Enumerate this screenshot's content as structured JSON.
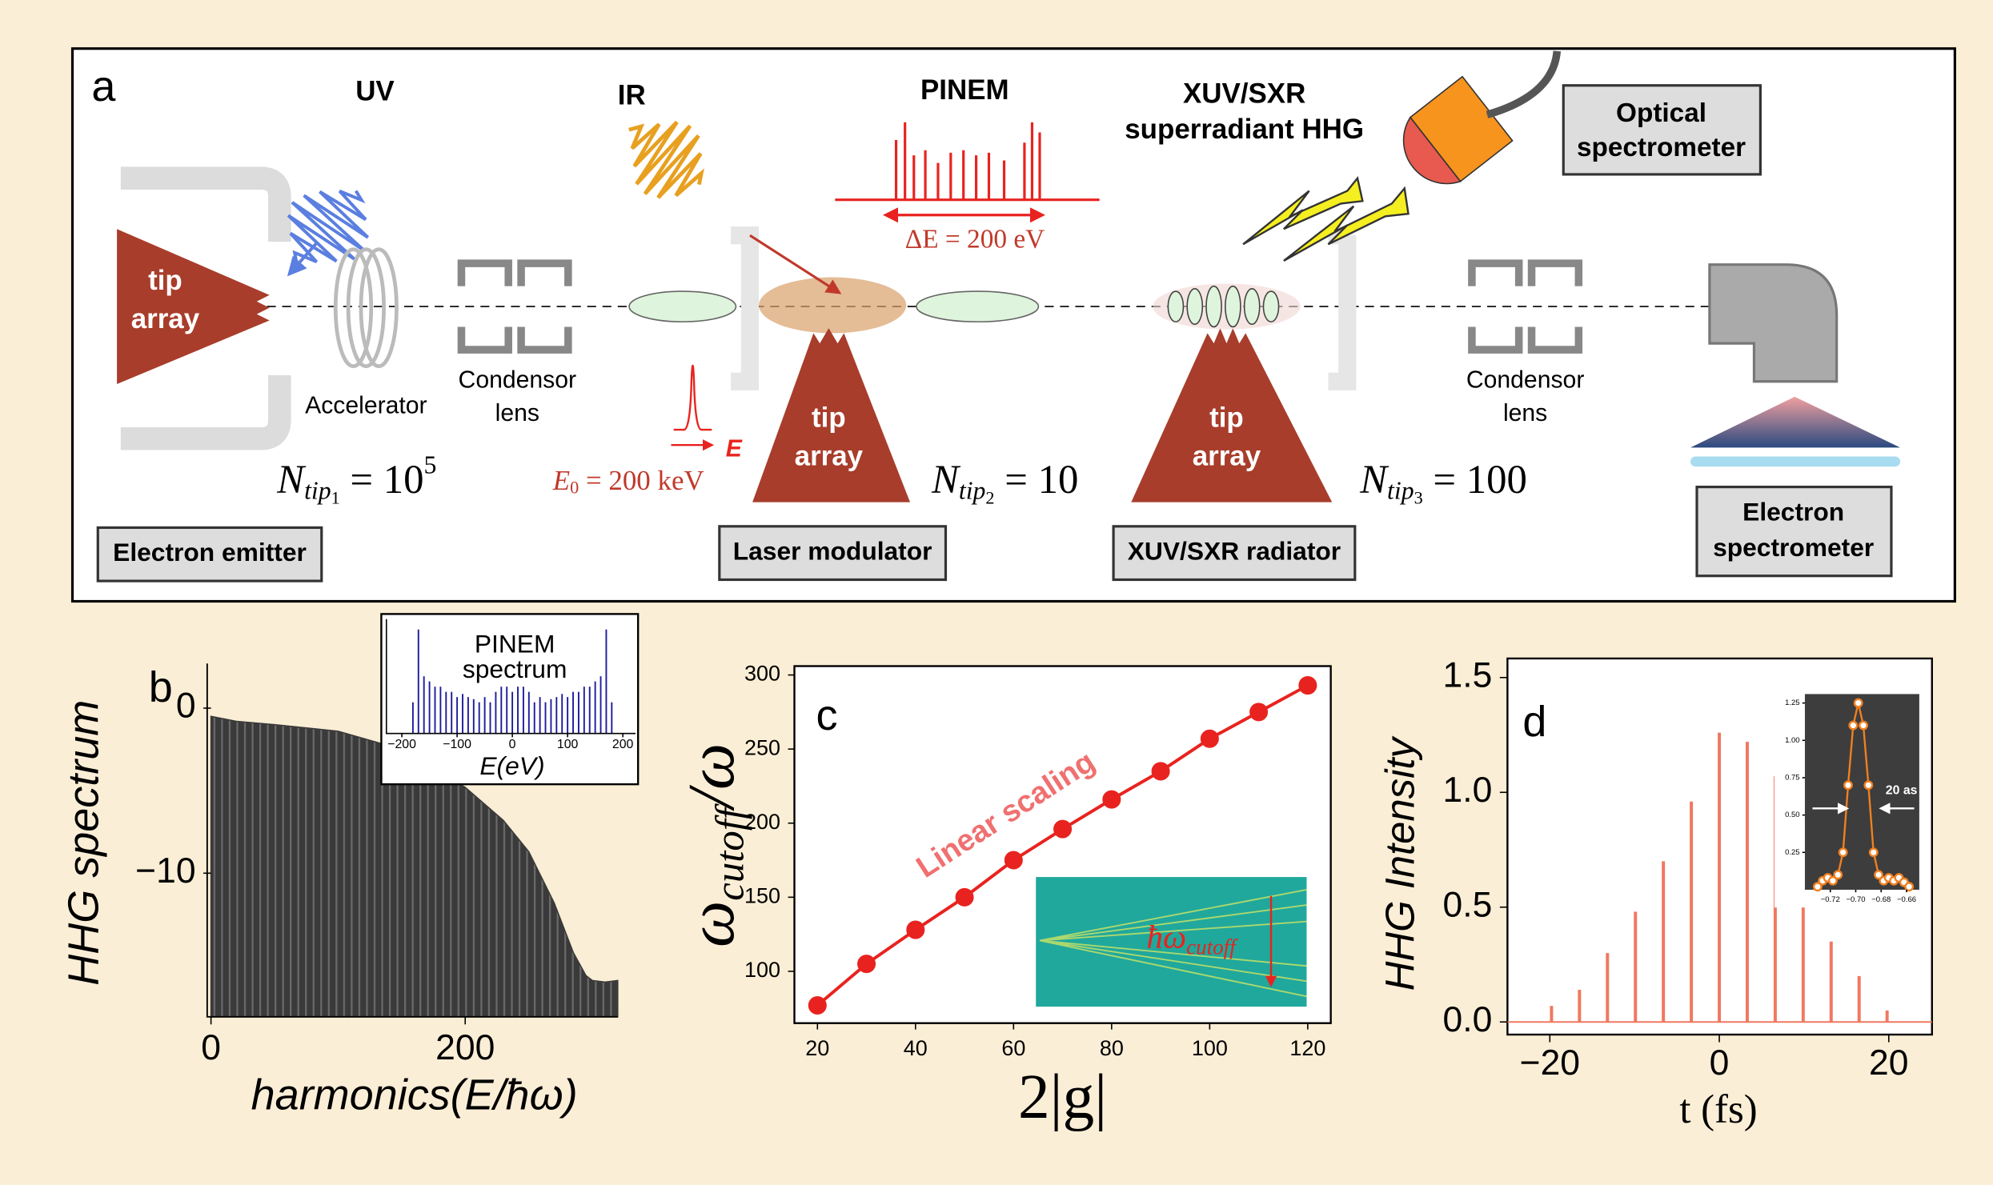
{
  "diagram": {
    "panel_label": "a",
    "uv": "UV",
    "ir": "IR",
    "pinem": "PINEM",
    "xuv_title": [
      "XUV/SXR",
      "superradiant HHG"
    ],
    "optical_spectrometer": [
      "Optical",
      "spectrometer"
    ],
    "tip_arrays": [
      [
        "tip",
        "array"
      ],
      [
        "tip",
        "array"
      ],
      [
        "tip",
        "array"
      ]
    ],
    "accelerator": "Accelerator",
    "condensor_lenses": [
      [
        "Condensor",
        "lens"
      ],
      [
        "Condensor",
        "lens"
      ]
    ],
    "delta_e": "ΔE = 200 eV",
    "energy_axis": "E",
    "e0": {
      "symbol": "E",
      "sub": "0",
      "rest": " = 200 keV"
    },
    "n_tips": [
      {
        "symbol": "N",
        "sub": "tip",
        "index": "1",
        "rest": " = 10",
        "sup": "5"
      },
      {
        "symbol": "N",
        "sub": "tip",
        "index": "2",
        "rest": " = 10"
      },
      {
        "symbol": "N",
        "sub": "tip",
        "index": "3",
        "rest": " = 100"
      }
    ],
    "boxes": {
      "electron_emitter": "Electron emitter",
      "laser_modulator": "Laser modulator",
      "xuv_radiator": "XUV/SXR radiator",
      "electron_spectrometer": [
        "Electron",
        "spectrometer"
      ]
    }
  },
  "chart_data": [
    {
      "type": "area",
      "panel_label": "b",
      "ylabel": "HHG spectrum",
      "xlabel": "harmonics(E/ħω)",
      "x": [
        0,
        20,
        50,
        100,
        150,
        200,
        230,
        250,
        270,
        285,
        295,
        300,
        310,
        320
      ],
      "values": [
        -0.5,
        -0.8,
        -1.0,
        -1.4,
        -2.5,
        -4.8,
        -6.8,
        -8.7,
        -11.8,
        -14.8,
        -16.2,
        -16.5,
        -16.6,
        -16.5
      ],
      "color": "#3a3a3a",
      "xlim": [
        0,
        320
      ],
      "ylim": [
        -18.7,
        2.7
      ],
      "xticks": [
        0,
        200
      ],
      "yticks": [
        0,
        {
          "value": -10,
          "label": "−10"
        }
      ]
    },
    {
      "type": "stem",
      "title": [
        "PINEM",
        "spectrum"
      ],
      "xlabel": "E(eV)",
      "x": [
        -180,
        -170,
        -160,
        -150,
        -140,
        -130,
        -120,
        -110,
        -100,
        -90,
        -80,
        -70,
        -60,
        -50,
        -40,
        -30,
        -20,
        -10,
        0,
        10,
        20,
        30,
        40,
        50,
        60,
        70,
        80,
        90,
        100,
        110,
        120,
        130,
        140,
        150,
        160,
        170,
        180
      ],
      "values": [
        0.3,
        1.0,
        0.55,
        0.5,
        0.45,
        0.45,
        0.4,
        0.4,
        0.35,
        0.38,
        0.35,
        0.33,
        0.3,
        0.35,
        0.3,
        0.4,
        0.45,
        0.45,
        0.4,
        0.45,
        0.45,
        0.4,
        0.3,
        0.35,
        0.3,
        0.33,
        0.35,
        0.38,
        0.35,
        0.4,
        0.4,
        0.45,
        0.45,
        0.5,
        0.55,
        1.0,
        0.3
      ],
      "color": "#1c1c9c",
      "xlim": [
        -228,
        223
      ],
      "ylim": [
        0,
        1.1
      ],
      "xticks": [
        {
          "value": -200,
          "label": "−200"
        },
        {
          "value": -100,
          "label": "−100"
        },
        0,
        100,
        200
      ]
    },
    {
      "type": "line",
      "panel_label": "c",
      "ylabel": {
        "main": "ω",
        "sub": "cutoff",
        "rest": "/ω"
      },
      "xlabel": "2|g|",
      "annotation": "Linear scaling",
      "inset_label": {
        "main": "ħω",
        "sub": "cutoff"
      },
      "x": [
        20,
        30,
        40,
        50,
        60,
        70,
        80,
        90,
        100,
        110,
        120
      ],
      "values": [
        77,
        105,
        128,
        150,
        175,
        196,
        216,
        235,
        257,
        275,
        293
      ],
      "color": "#e8231f",
      "markers": true,
      "xlim": [
        15.3,
        124.7
      ],
      "ylim": [
        65,
        306
      ],
      "xticks": [
        20,
        40,
        60,
        80,
        100,
        120
      ],
      "yticks": [
        100,
        150,
        200,
        250,
        300
      ]
    },
    {
      "type": "stem",
      "panel_label": "d",
      "ylabel": "HHG Intensity",
      "xlabel": "t (fs)",
      "x": [
        -19.8,
        -16.5,
        -13.2,
        -9.9,
        -6.6,
        -3.3,
        0,
        3.3,
        6.6,
        9.9,
        13.2,
        16.5,
        19.8
      ],
      "values": [
        0.07,
        0.14,
        0.3,
        0.48,
        0.7,
        0.96,
        1.26,
        1.22,
        1.07,
        0.82,
        0.35,
        0.2,
        0.05
      ],
      "color": "#f07860",
      "xlim": [
        -25,
        25.1
      ],
      "ylim": [
        -0.055,
        1.583
      ],
      "xticks": [
        {
          "value": -20,
          "label": "−20"
        },
        0,
        20
      ],
      "yticks": [
        {
          "value": 0,
          "label": "0.0"
        },
        0.5,
        {
          "value": 1,
          "label": "1.0"
        },
        1.5
      ]
    },
    {
      "type": "line",
      "annotation": "20 as",
      "x": [
        -0.73,
        -0.726,
        -0.722,
        -0.718,
        -0.714,
        -0.71,
        -0.706,
        -0.702,
        -0.698,
        -0.694,
        -0.69,
        -0.686,
        -0.682,
        -0.678,
        -0.674,
        -0.67,
        -0.666,
        -0.662,
        -0.658
      ],
      "values": [
        0.02,
        0.06,
        0.08,
        0.06,
        0.1,
        0.25,
        0.7,
        1.1,
        1.25,
        1.1,
        0.7,
        0.25,
        0.1,
        0.06,
        0.08,
        0.06,
        0.08,
        0.05,
        0.02
      ],
      "color": "#f08020",
      "markers": true,
      "xlim": [
        -0.74,
        -0.65
      ],
      "ylim": [
        0,
        1.31
      ],
      "xticks": [
        {
          "value": -0.72,
          "label": "−0.72"
        },
        {
          "value": -0.7,
          "label": "−0.70"
        },
        {
          "value": -0.68,
          "label": "−0.68"
        },
        {
          "value": -0.66,
          "label": "−0.66"
        }
      ],
      "yticks": [
        0.25,
        {
          "value": 0.5,
          "label": "0.50"
        },
        0.75,
        {
          "value": 1,
          "label": "1.00"
        },
        1.25
      ]
    }
  ]
}
